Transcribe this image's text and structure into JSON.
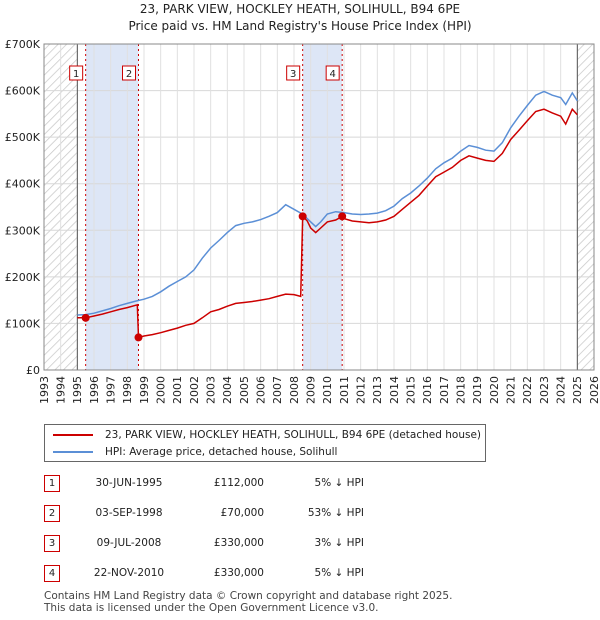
{
  "chart_data": {
    "type": "line",
    "title": "23, PARK VIEW, HOCKLEY HEATH, SOLIHULL, B94 6PE",
    "subtitle": "Price paid vs. HM Land Registry's House Price Index (HPI)",
    "xlim": [
      1993,
      2026
    ],
    "ylim": [
      0,
      700000
    ],
    "x_ticks": [
      "1993",
      "1994",
      "1995",
      "1996",
      "1997",
      "1998",
      "1999",
      "2000",
      "2001",
      "2002",
      "2003",
      "2004",
      "2005",
      "2006",
      "2007",
      "2008",
      "2009",
      "2010",
      "2011",
      "2012",
      "2013",
      "2014",
      "2015",
      "2016",
      "2017",
      "2018",
      "2019",
      "2020",
      "2021",
      "2022",
      "2023",
      "2024",
      "2025",
      "2026"
    ],
    "y_ticks": [
      {
        "value": 0,
        "label": "£0"
      },
      {
        "value": 100000,
        "label": "£100K"
      },
      {
        "value": 200000,
        "label": "£200K"
      },
      {
        "value": 300000,
        "label": "£300K"
      },
      {
        "value": 400000,
        "label": "£400K"
      },
      {
        "value": 500000,
        "label": "£500K"
      },
      {
        "value": 600000,
        "label": "£600K"
      },
      {
        "value": 700000,
        "label": "£700K"
      }
    ],
    "hatch_ranges": [
      [
        1993,
        1995.0
      ],
      [
        2025.0,
        2026
      ]
    ],
    "highlight_ranges": [
      [
        1995.5,
        1998.67
      ],
      [
        2008.52,
        2010.89
      ]
    ],
    "series": [
      {
        "name": "23, PARK VIEW, HOCKLEY HEATH, SOLIHULL, B94 6PE (detached house)",
        "color": "#cc0000",
        "points": [
          [
            1995.0,
            112000
          ],
          [
            1995.5,
            112000
          ],
          [
            1996,
            116000
          ],
          [
            1996.5,
            120000
          ],
          [
            1997,
            125000
          ],
          [
            1997.5,
            130000
          ],
          [
            1998,
            134000
          ],
          [
            1998.6,
            140000
          ],
          [
            1998.67,
            70000
          ],
          [
            1999,
            73000
          ],
          [
            1999.5,
            76000
          ],
          [
            2000,
            80000
          ],
          [
            2000.5,
            85000
          ],
          [
            2001,
            90000
          ],
          [
            2001.5,
            96000
          ],
          [
            2002,
            100000
          ],
          [
            2002.5,
            112000
          ],
          [
            2003,
            125000
          ],
          [
            2003.5,
            130000
          ],
          [
            2004,
            137000
          ],
          [
            2004.5,
            143000
          ],
          [
            2005,
            145000
          ],
          [
            2005.5,
            147000
          ],
          [
            2006,
            150000
          ],
          [
            2006.5,
            153000
          ],
          [
            2007,
            158000
          ],
          [
            2007.5,
            163000
          ],
          [
            2008,
            162000
          ],
          [
            2008.4,
            158000
          ],
          [
            2008.52,
            330000
          ],
          [
            2008.8,
            320000
          ],
          [
            2009,
            305000
          ],
          [
            2009.3,
            295000
          ],
          [
            2009.6,
            305000
          ],
          [
            2010,
            318000
          ],
          [
            2010.5,
            322000
          ],
          [
            2010.89,
            330000
          ],
          [
            2011,
            325000
          ],
          [
            2011.5,
            320000
          ],
          [
            2012,
            318000
          ],
          [
            2012.5,
            316000
          ],
          [
            2013,
            318000
          ],
          [
            2013.5,
            322000
          ],
          [
            2014,
            330000
          ],
          [
            2014.5,
            345000
          ],
          [
            2015,
            360000
          ],
          [
            2015.5,
            375000
          ],
          [
            2016,
            395000
          ],
          [
            2016.5,
            415000
          ],
          [
            2017,
            425000
          ],
          [
            2017.5,
            435000
          ],
          [
            2018,
            450000
          ],
          [
            2018.5,
            460000
          ],
          [
            2019,
            455000
          ],
          [
            2019.5,
            450000
          ],
          [
            2020,
            448000
          ],
          [
            2020.5,
            465000
          ],
          [
            2021,
            495000
          ],
          [
            2021.5,
            515000
          ],
          [
            2022,
            535000
          ],
          [
            2022.5,
            555000
          ],
          [
            2023,
            560000
          ],
          [
            2023.5,
            552000
          ],
          [
            2024,
            545000
          ],
          [
            2024.3,
            528000
          ],
          [
            2024.7,
            560000
          ],
          [
            2025.0,
            548000
          ]
        ]
      },
      {
        "name": "HPI: Average price, detached house, Solihull",
        "color": "#5b8fd6",
        "points": [
          [
            1995.0,
            118000
          ],
          [
            1995.5,
            119000
          ],
          [
            1996,
            122000
          ],
          [
            1996.5,
            127000
          ],
          [
            1997,
            132000
          ],
          [
            1997.5,
            138000
          ],
          [
            1998,
            143000
          ],
          [
            1998.5,
            148000
          ],
          [
            1999,
            152000
          ],
          [
            1999.5,
            158000
          ],
          [
            2000,
            168000
          ],
          [
            2000.5,
            180000
          ],
          [
            2001,
            190000
          ],
          [
            2001.5,
            200000
          ],
          [
            2002,
            215000
          ],
          [
            2002.5,
            240000
          ],
          [
            2003,
            262000
          ],
          [
            2003.5,
            278000
          ],
          [
            2004,
            295000
          ],
          [
            2004.5,
            310000
          ],
          [
            2005,
            315000
          ],
          [
            2005.5,
            318000
          ],
          [
            2006,
            323000
          ],
          [
            2006.5,
            330000
          ],
          [
            2007,
            338000
          ],
          [
            2007.5,
            355000
          ],
          [
            2008,
            345000
          ],
          [
            2008.5,
            335000
          ],
          [
            2009,
            318000
          ],
          [
            2009.3,
            308000
          ],
          [
            2009.6,
            318000
          ],
          [
            2010,
            335000
          ],
          [
            2010.5,
            340000
          ],
          [
            2011,
            338000
          ],
          [
            2011.5,
            335000
          ],
          [
            2012,
            334000
          ],
          [
            2012.5,
            335000
          ],
          [
            2013,
            337000
          ],
          [
            2013.5,
            342000
          ],
          [
            2014,
            352000
          ],
          [
            2014.5,
            368000
          ],
          [
            2015,
            380000
          ],
          [
            2015.5,
            395000
          ],
          [
            2016,
            412000
          ],
          [
            2016.5,
            432000
          ],
          [
            2017,
            445000
          ],
          [
            2017.5,
            455000
          ],
          [
            2018,
            470000
          ],
          [
            2018.5,
            482000
          ],
          [
            2019,
            478000
          ],
          [
            2019.5,
            472000
          ],
          [
            2020,
            470000
          ],
          [
            2020.5,
            488000
          ],
          [
            2021,
            520000
          ],
          [
            2021.5,
            545000
          ],
          [
            2022,
            568000
          ],
          [
            2022.5,
            590000
          ],
          [
            2023,
            598000
          ],
          [
            2023.5,
            590000
          ],
          [
            2024,
            585000
          ],
          [
            2024.3,
            570000
          ],
          [
            2024.7,
            595000
          ],
          [
            2025.0,
            578000
          ]
        ]
      }
    ],
    "sales": [
      {
        "num": "1",
        "x": 1995.5,
        "price": 112000
      },
      {
        "num": "2",
        "x": 1998.67,
        "price": 70000
      },
      {
        "num": "3",
        "x": 2008.52,
        "price": 330000
      },
      {
        "num": "4",
        "x": 2010.89,
        "price": 330000
      }
    ]
  },
  "legend": {
    "property": "23, PARK VIEW, HOCKLEY HEATH, SOLIHULL, B94 6PE (detached house)",
    "hpi": "HPI: Average price, detached house, Solihull"
  },
  "sales_table": [
    {
      "num": "1",
      "date": "30-JUN-1995",
      "price": "£112,000",
      "hpi": "5% ↓ HPI"
    },
    {
      "num": "2",
      "date": "03-SEP-1998",
      "price": "£70,000",
      "hpi": "53% ↓ HPI"
    },
    {
      "num": "3",
      "date": "09-JUL-2008",
      "price": "£330,000",
      "hpi": "3% ↓ HPI"
    },
    {
      "num": "4",
      "date": "22-NOV-2010",
      "price": "£330,000",
      "hpi": "5% ↓ HPI"
    }
  ],
  "footer": {
    "line1": "Contains HM Land Registry data © Crown copyright and database right 2025.",
    "line2": "This data is licensed under the Open Government Licence v3.0."
  }
}
